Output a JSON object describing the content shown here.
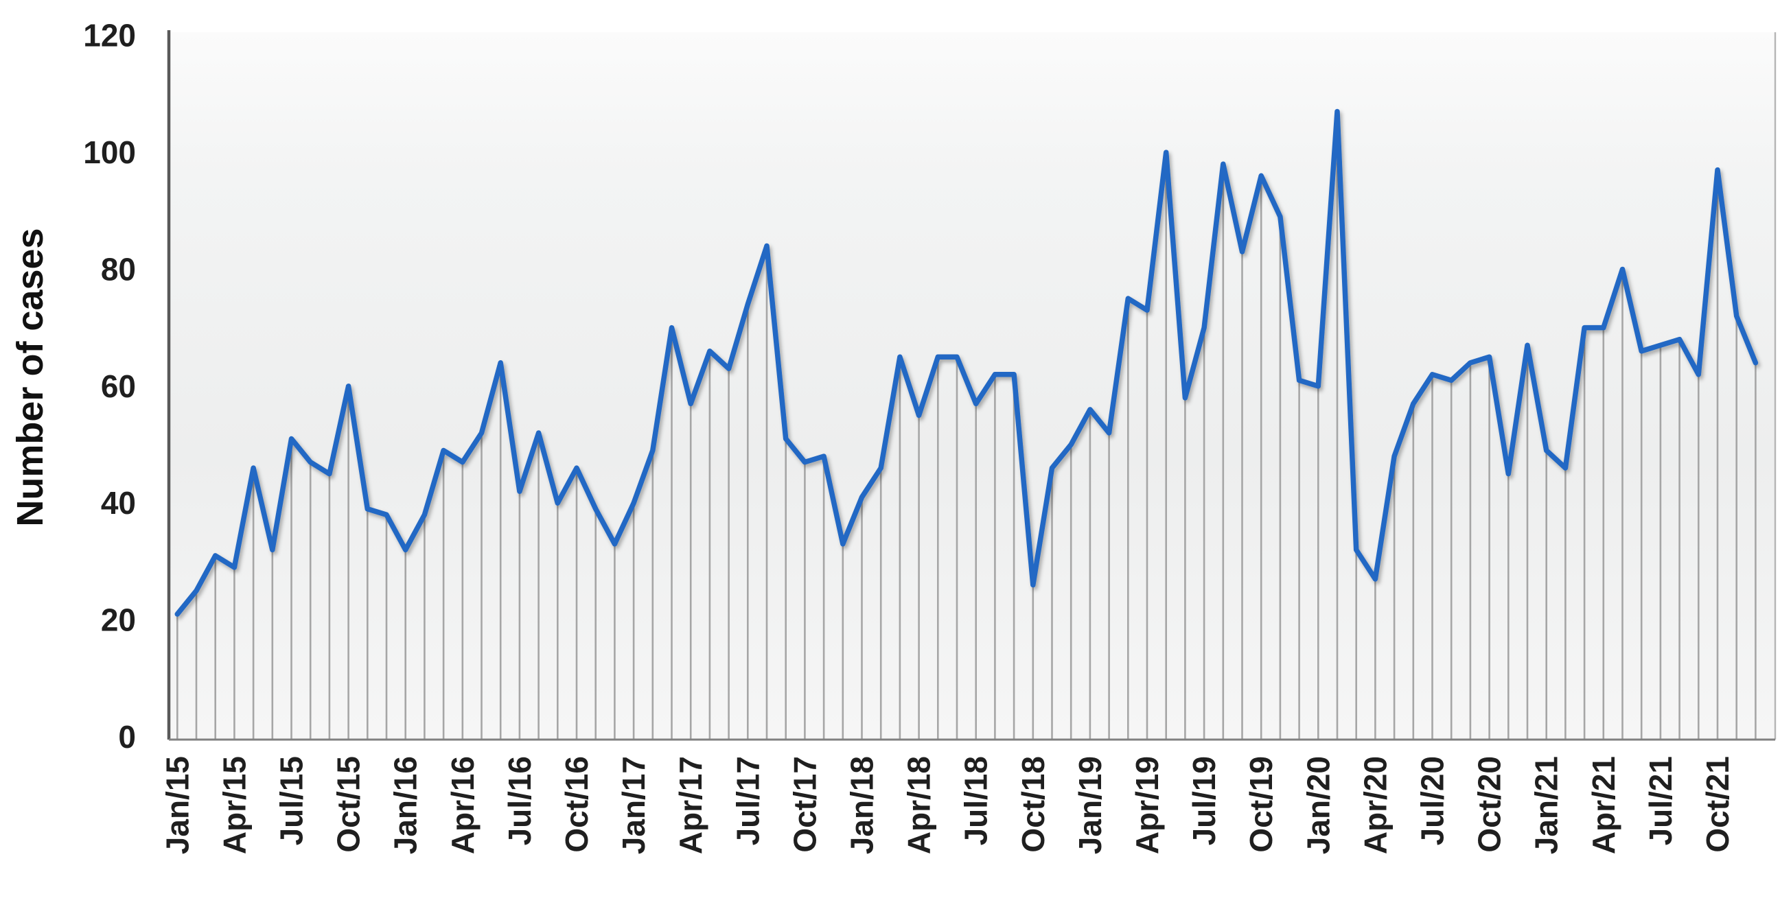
{
  "chart_data": {
    "type": "line",
    "title": "",
    "xlabel": "",
    "ylabel": "Number of cases",
    "ylim": [
      0,
      120
    ],
    "y_ticks": [
      0,
      20,
      40,
      60,
      80,
      100,
      120
    ],
    "grid": "vertical drop lines from every monthly data point to the x-axis",
    "legend_position": "none",
    "x": [
      "Jan/15",
      "Feb/15",
      "Mar/15",
      "Apr/15",
      "May/15",
      "Jun/15",
      "Jul/15",
      "Aug/15",
      "Sep/15",
      "Oct/15",
      "Nov/15",
      "Dec/15",
      "Jan/16",
      "Feb/16",
      "Mar/16",
      "Apr/16",
      "May/16",
      "Jun/16",
      "Jul/16",
      "Aug/16",
      "Sep/16",
      "Oct/16",
      "Nov/16",
      "Dec/16",
      "Jan/17",
      "Feb/17",
      "Mar/17",
      "Apr/17",
      "May/17",
      "Jun/17",
      "Jul/17",
      "Aug/17",
      "Sep/17",
      "Oct/17",
      "Nov/17",
      "Dec/17",
      "Jan/18",
      "Feb/18",
      "Mar/18",
      "Apr/18",
      "May/18",
      "Jun/18",
      "Jul/18",
      "Aug/18",
      "Sep/18",
      "Oct/18",
      "Nov/18",
      "Dec/18",
      "Jan/19",
      "Feb/19",
      "Mar/19",
      "Apr/19",
      "May/19",
      "Jun/19",
      "Jul/19",
      "Aug/19",
      "Sep/19",
      "Oct/19",
      "Nov/19",
      "Dec/19",
      "Jan/20",
      "Feb/20",
      "Mar/20",
      "Apr/20",
      "May/20",
      "Jun/20",
      "Jul/20",
      "Aug/20",
      "Sep/20",
      "Oct/20",
      "Nov/20",
      "Dec/20",
      "Jan/21",
      "Feb/21",
      "Mar/21",
      "Apr/21",
      "May/21",
      "Jun/21",
      "Jul/21",
      "Aug/21",
      "Sep/21",
      "Oct/21",
      "Nov/21",
      "Dec/21"
    ],
    "x_tick_labels": [
      "Jan/15",
      "Apr/15",
      "Jul/15",
      "Oct/15",
      "Jan/16",
      "Apr/16",
      "Jul/16",
      "Oct/16",
      "Jan/17",
      "Apr/17",
      "Jul/17",
      "Oct/17",
      "Jan/18",
      "Apr/18",
      "Jul/18",
      "Oct/18",
      "Jan/19",
      "Apr/19",
      "Jul/19",
      "Oct/19",
      "Jan/20",
      "Apr/20",
      "Jul/20",
      "Oct/20",
      "Jan/21",
      "Apr/21",
      "Jul/21",
      "Oct/21"
    ],
    "x_tick_every": 3,
    "series": [
      {
        "name": "Number of cases",
        "values": [
          21,
          25,
          31,
          29,
          46,
          32,
          51,
          47,
          45,
          60,
          39,
          38,
          32,
          38,
          49,
          47,
          52,
          64,
          42,
          52,
          40,
          46,
          39,
          33,
          40,
          49,
          70,
          57,
          66,
          63,
          74,
          84,
          51,
          47,
          48,
          33,
          41,
          46,
          65,
          55,
          65,
          65,
          57,
          62,
          62,
          26,
          46,
          50,
          56,
          52,
          75,
          73,
          100,
          58,
          70,
          98,
          83,
          96,
          89,
          61,
          60,
          107,
          32,
          27,
          48,
          57,
          62,
          61,
          64,
          65,
          45,
          67,
          49,
          46,
          70,
          70,
          80,
          66,
          67,
          68,
          62,
          97,
          72,
          64
        ]
      }
    ],
    "colors": {
      "line": "#2368c4",
      "drop_line": "#a6a6a6",
      "y_axis_line": "#595959",
      "x_axis_line": "#808080",
      "plot_right_border": "#b5b5b5",
      "tick_text": "#1f1f1f",
      "plot_bg_top": "#fbfbfb",
      "plot_bg_mid": "#edeeee",
      "plot_bg_bottom": "#f6f6f6"
    }
  }
}
